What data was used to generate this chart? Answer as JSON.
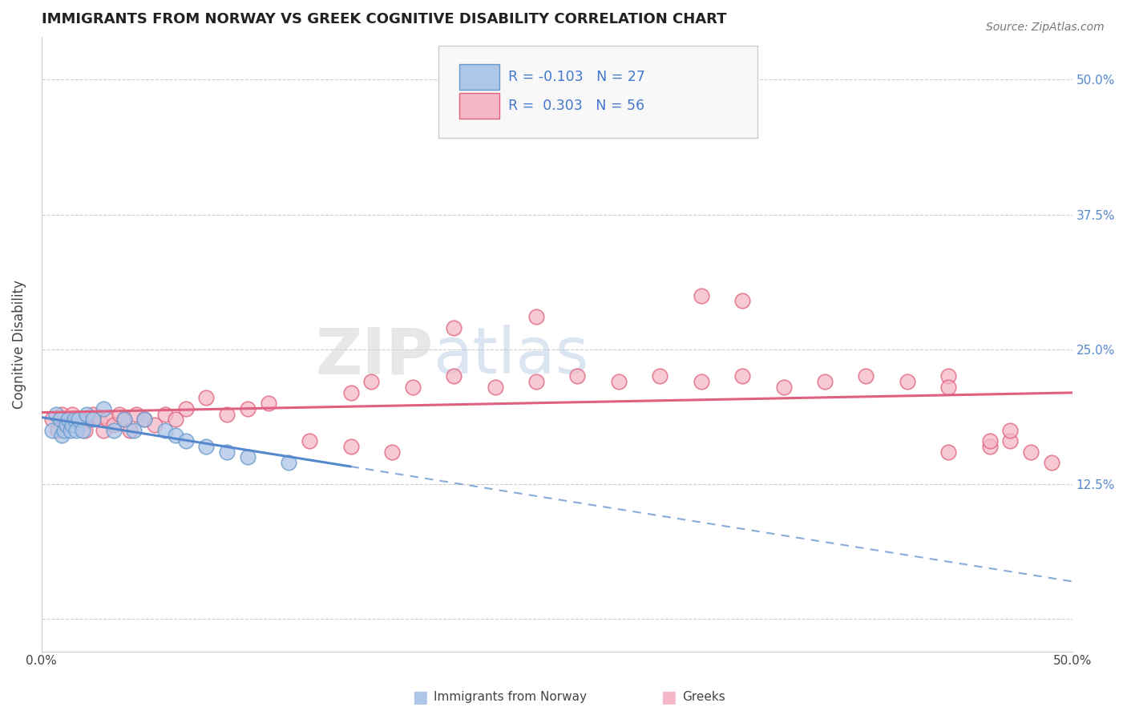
{
  "title": "IMMIGRANTS FROM NORWAY VS GREEK COGNITIVE DISABILITY CORRELATION CHART",
  "source": "Source: ZipAtlas.com",
  "ylabel": "Cognitive Disability",
  "xlim": [
    0.0,
    0.5
  ],
  "ylim": [
    -0.03,
    0.54
  ],
  "ytick_values": [
    0.0,
    0.125,
    0.25,
    0.375,
    0.5
  ],
  "xtick_values": [
    0.0,
    0.1,
    0.2,
    0.3,
    0.4,
    0.5
  ],
  "watermark_zip": "ZIP",
  "watermark_atlas": "atlas",
  "norway_color": "#aec6e8",
  "norway_edge_color": "#6699cc",
  "greek_color": "#f4b8c8",
  "greek_edge_color": "#e0607a",
  "norway_line_color": "#5588cc",
  "greek_line_color": "#e06080",
  "norway_scatter": [
    [
      0.005,
      0.175
    ],
    [
      0.007,
      0.19
    ],
    [
      0.009,
      0.185
    ],
    [
      0.01,
      0.17
    ],
    [
      0.011,
      0.175
    ],
    [
      0.012,
      0.18
    ],
    [
      0.013,
      0.185
    ],
    [
      0.014,
      0.175
    ],
    [
      0.015,
      0.18
    ],
    [
      0.016,
      0.185
    ],
    [
      0.017,
      0.175
    ],
    [
      0.018,
      0.185
    ],
    [
      0.02,
      0.175
    ],
    [
      0.022,
      0.19
    ],
    [
      0.025,
      0.185
    ],
    [
      0.03,
      0.195
    ],
    [
      0.035,
      0.175
    ],
    [
      0.04,
      0.185
    ],
    [
      0.045,
      0.175
    ],
    [
      0.05,
      0.185
    ],
    [
      0.06,
      0.175
    ],
    [
      0.065,
      0.17
    ],
    [
      0.07,
      0.165
    ],
    [
      0.08,
      0.16
    ],
    [
      0.09,
      0.155
    ],
    [
      0.1,
      0.15
    ],
    [
      0.12,
      0.145
    ]
  ],
  "greek_scatter": [
    [
      0.005,
      0.185
    ],
    [
      0.008,
      0.175
    ],
    [
      0.01,
      0.19
    ],
    [
      0.012,
      0.18
    ],
    [
      0.015,
      0.19
    ],
    [
      0.017,
      0.185
    ],
    [
      0.019,
      0.18
    ],
    [
      0.021,
      0.175
    ],
    [
      0.023,
      0.185
    ],
    [
      0.025,
      0.19
    ],
    [
      0.028,
      0.185
    ],
    [
      0.03,
      0.175
    ],
    [
      0.032,
      0.185
    ],
    [
      0.035,
      0.18
    ],
    [
      0.038,
      0.19
    ],
    [
      0.04,
      0.185
    ],
    [
      0.043,
      0.175
    ],
    [
      0.046,
      0.19
    ],
    [
      0.05,
      0.185
    ],
    [
      0.055,
      0.18
    ],
    [
      0.06,
      0.19
    ],
    [
      0.065,
      0.185
    ],
    [
      0.07,
      0.195
    ],
    [
      0.08,
      0.205
    ],
    [
      0.09,
      0.19
    ],
    [
      0.1,
      0.195
    ],
    [
      0.11,
      0.2
    ],
    [
      0.15,
      0.21
    ],
    [
      0.16,
      0.22
    ],
    [
      0.18,
      0.215
    ],
    [
      0.2,
      0.225
    ],
    [
      0.22,
      0.215
    ],
    [
      0.24,
      0.22
    ],
    [
      0.26,
      0.225
    ],
    [
      0.28,
      0.22
    ],
    [
      0.3,
      0.225
    ],
    [
      0.32,
      0.22
    ],
    [
      0.34,
      0.225
    ],
    [
      0.36,
      0.215
    ],
    [
      0.38,
      0.22
    ],
    [
      0.4,
      0.225
    ],
    [
      0.42,
      0.22
    ],
    [
      0.44,
      0.225
    ],
    [
      0.2,
      0.27
    ],
    [
      0.24,
      0.28
    ],
    [
      0.32,
      0.3
    ],
    [
      0.34,
      0.295
    ],
    [
      0.44,
      0.215
    ],
    [
      0.46,
      0.16
    ],
    [
      0.44,
      0.155
    ],
    [
      0.46,
      0.165
    ],
    [
      0.47,
      0.165
    ],
    [
      0.48,
      0.155
    ],
    [
      0.47,
      0.175
    ],
    [
      0.49,
      0.145
    ],
    [
      0.13,
      0.165
    ],
    [
      0.15,
      0.16
    ],
    [
      0.17,
      0.155
    ]
  ]
}
